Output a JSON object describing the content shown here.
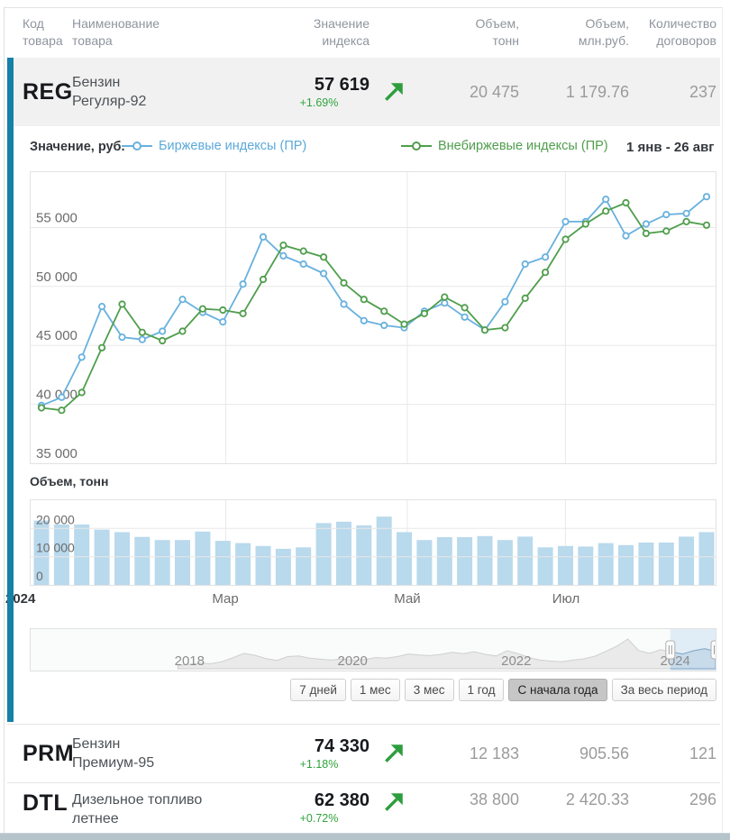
{
  "header": {
    "columns": [
      {
        "l1": "Код",
        "l2": "товара"
      },
      {
        "l1": "Наименование",
        "l2": "товара"
      },
      {
        "l1": "Значение",
        "l2": "индекса"
      },
      {
        "l1": "Объем,",
        "l2": "тонн"
      },
      {
        "l1": "Объем,",
        "l2": "млн.руб."
      },
      {
        "l1": "Количество",
        "l2": "договоров"
      }
    ]
  },
  "rows": [
    {
      "code": "REG",
      "name1": "Бензин",
      "name2": "Регуляр-92",
      "value": "57 619",
      "change": "+1.69%",
      "tons": "20 475",
      "rub": "1 179.76",
      "contracts": "237"
    },
    {
      "code": "PRM",
      "name1": "Бензин",
      "name2": "Премиум-95",
      "value": "74 330",
      "change": "+1.18%",
      "tons": "12 183",
      "rub": "905.56",
      "contracts": "121"
    },
    {
      "code": "DTL",
      "name1": "Дизельное топливо",
      "name2": "летнее",
      "value": "62 380",
      "change": "+0.72%",
      "tons": "38 800",
      "rub": "2 420.33",
      "contracts": "296"
    }
  ],
  "legend": {
    "y_title": "Значение, руб.",
    "series_exchange": "Биржевые индексы (ПР)",
    "series_otc": "Внебиржевые индексы (ПР)",
    "period": "1 янв - 26 авг"
  },
  "volume_title": "Объем, тонн",
  "range_buttons": {
    "items": [
      "7 дней",
      "1 мес",
      "3 мес",
      "1 год",
      "С начала года",
      "За весь период"
    ],
    "active": "С начала года"
  },
  "colors": {
    "accent": "#1580a8",
    "series_exchange": "#68b1de",
    "series_otc": "#4f9e4c",
    "bars": "#b9d9ec",
    "positive": "#2fa43c",
    "grid": "#e8e8e8",
    "axis_text": "#6b6b6b"
  },
  "chart_data": {
    "main": {
      "type": "line",
      "title": "Значение, руб.",
      "period": "1 янв - 26 авг",
      "ylim": [
        35000,
        59700
      ],
      "yticks": [
        {
          "v": 55000,
          "label": "55 000"
        },
        {
          "v": 50000,
          "label": "50 000"
        },
        {
          "v": 45000,
          "label": "45 000"
        },
        {
          "v": 40000,
          "label": "40 000"
        },
        {
          "v": 35000,
          "label": "35 000"
        }
      ],
      "xticks": [
        {
          "f": 0.2848,
          "label": "Мар"
        },
        {
          "f": 0.5499,
          "label": "Май"
        },
        {
          "f": 0.7808,
          "label": "Июл"
        }
      ],
      "year_label": "2024",
      "series": [
        {
          "name": "Биржевые индексы (ПР)",
          "color": "#68b1de",
          "values": [
            39900,
            40600,
            44000,
            48300,
            45700,
            45500,
            46200,
            48900,
            47800,
            47000,
            50200,
            54200,
            52600,
            51900,
            51100,
            48500,
            47100,
            46700,
            46500,
            47900,
            48600,
            47400,
            46300,
            48700,
            51900,
            52500,
            55500,
            55500,
            57400,
            54300,
            55300,
            56100,
            56200,
            57619
          ]
        },
        {
          "name": "Внебиржевые индексы (ПР)",
          "color": "#4f9e4c",
          "values": [
            39700,
            39500,
            41000,
            44800,
            48500,
            46100,
            45400,
            46200,
            48100,
            48000,
            47700,
            50600,
            53500,
            53000,
            52500,
            50300,
            48900,
            47900,
            46800,
            47700,
            49100,
            48200,
            46300,
            46500,
            49000,
            51200,
            54000,
            55300,
            56400,
            57100,
            54500,
            54700,
            55500,
            55200
          ]
        }
      ]
    },
    "volume": {
      "type": "bar",
      "title": "Объем, тонн",
      "ylim": [
        0,
        30000
      ],
      "yticks": [
        {
          "v": 20000,
          "label": "20 000"
        },
        {
          "v": 10000,
          "label": "10 000"
        },
        {
          "v": 0,
          "label": "0"
        }
      ],
      "color": "#b9d9ec",
      "values": [
        22800,
        21400,
        21400,
        19600,
        18700,
        17000,
        15900,
        15900,
        18900,
        15600,
        14800,
        13800,
        12800,
        13300,
        21900,
        22400,
        21100,
        24200,
        18700,
        15900,
        16900,
        16900,
        17300,
        15900,
        17100,
        13300,
        13800,
        13600,
        14800,
        14100,
        15000,
        15000,
        17100,
        18700
      ]
    },
    "navigator": {
      "type": "area",
      "years": [
        {
          "f": 0.232,
          "label": "2018"
        },
        {
          "f": 0.47,
          "label": "2020"
        },
        {
          "f": 0.709,
          "label": "2022"
        },
        {
          "f": 0.941,
          "label": "2024"
        }
      ],
      "x_start_f": 0.215,
      "heights": [
        0.05,
        0.08,
        0.12,
        0.1,
        0.16,
        0.28,
        0.42,
        0.36,
        0.26,
        0.2,
        0.32,
        0.34,
        0.27,
        0.24,
        0.21,
        0.25,
        0.2,
        0.23,
        0.29,
        0.27,
        0.32,
        0.4,
        0.37,
        0.35,
        0.39,
        0.45,
        0.41,
        0.47,
        0.39,
        0.34,
        0.5,
        0.41,
        0.29,
        0.21,
        0.18,
        0.16,
        0.21,
        0.25,
        0.33,
        0.48,
        0.64,
        0.86,
        0.5,
        0.42,
        0.53,
        0.46,
        0.4,
        0.5,
        0.56,
        0.48
      ],
      "selection": [
        0.934,
        1.0
      ]
    }
  }
}
